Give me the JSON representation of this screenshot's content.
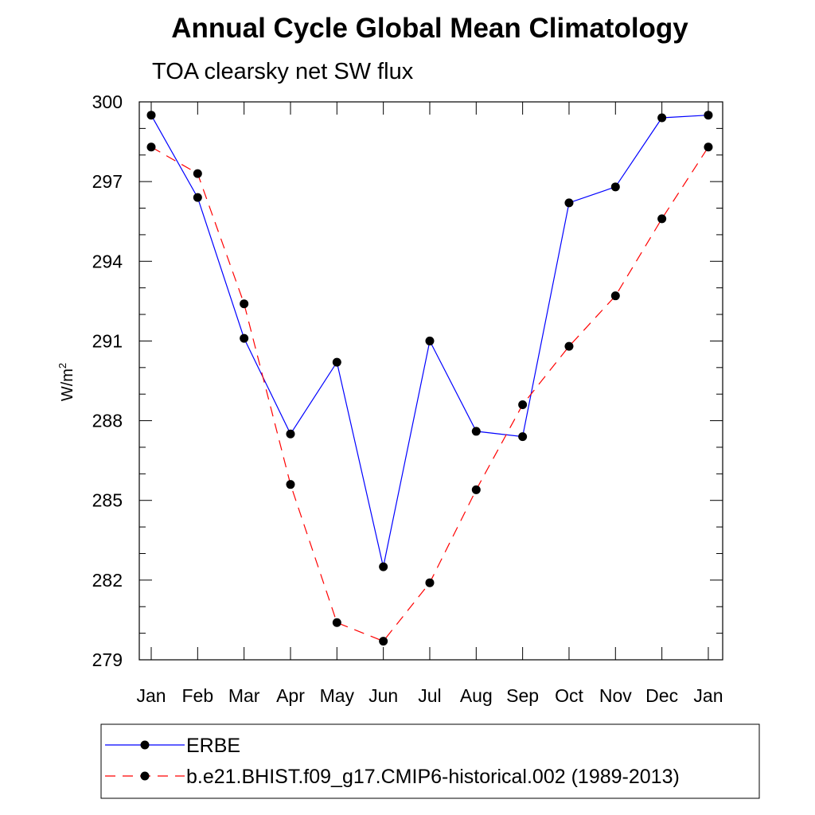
{
  "chart_data": {
    "type": "line",
    "title": "Annual Cycle Global Mean Climatology",
    "subtitle": "TOA clearsky net SW flux",
    "ylabel": "W/m",
    "ylabel_sup": "2",
    "categories": [
      "Jan",
      "Feb",
      "Mar",
      "Apr",
      "May",
      "Jun",
      "Jul",
      "Aug",
      "Sep",
      "Oct",
      "Nov",
      "Dec",
      "Jan"
    ],
    "yticks": [
      279,
      282,
      285,
      288,
      291,
      294,
      297,
      300
    ],
    "ylim": [
      279,
      300
    ],
    "grid": false,
    "legend_position": "bottom",
    "series": [
      {
        "name": "ERBE",
        "color": "#0000ff",
        "line_style": "solid",
        "values": [
          299.5,
          296.4,
          291.1,
          287.5,
          290.2,
          282.5,
          291.0,
          287.6,
          287.4,
          296.2,
          296.8,
          299.4,
          299.5
        ]
      },
      {
        "name": "b.e21.BHIST.f09_g17.CMIP6-historical.002 (1989-2013)",
        "color": "#ff0000",
        "line_style": "dashed",
        "values": [
          298.3,
          297.3,
          292.4,
          285.6,
          280.4,
          279.7,
          281.9,
          285.4,
          288.6,
          290.8,
          292.7,
          295.6,
          298.3
        ]
      }
    ]
  }
}
